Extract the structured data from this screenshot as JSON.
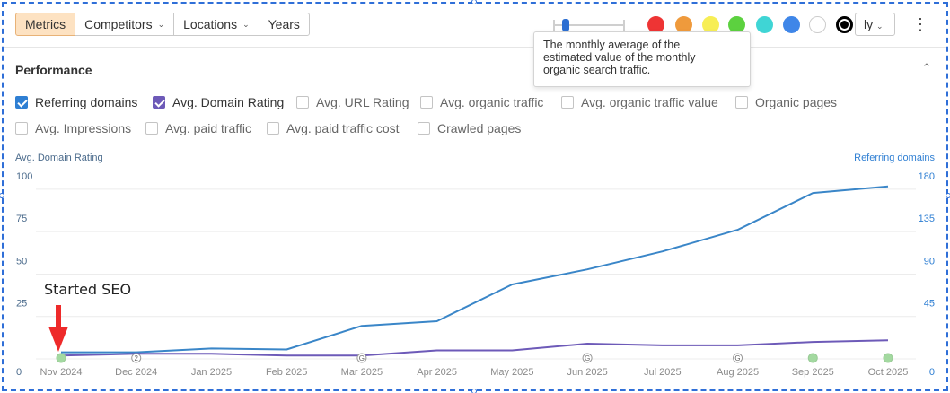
{
  "toolbar": {
    "tabs": [
      {
        "label": "Metrics",
        "active": true
      },
      {
        "label": "Competitors",
        "dropdown": true
      },
      {
        "label": "Locations",
        "dropdown": true
      },
      {
        "label": "Years"
      }
    ]
  },
  "palette": [
    "#ee3434",
    "#ef9a3c",
    "#f7ee55",
    "#5cd13f",
    "#3fd5d5",
    "#3f86e8",
    "#ffffff",
    "#000000"
  ],
  "period": {
    "label": "ly"
  },
  "tooltip": {
    "lines": [
      "The monthly average of the",
      "estimated value of the monthly",
      "organic search traffic."
    ]
  },
  "section": {
    "title": "Performance"
  },
  "metrics": {
    "row1": [
      {
        "label": "Referring domains",
        "checked": true,
        "color": "#2f7fd3"
      },
      {
        "label": "Avg. Domain Rating",
        "checked": true,
        "color": "#6d5ab8"
      },
      {
        "label": "Avg. URL Rating",
        "checked": false
      },
      {
        "label": "Avg. organic traffic",
        "checked": false
      },
      {
        "label": "Avg. organic traffic value",
        "checked": false
      },
      {
        "label": "Organic pages",
        "checked": false
      }
    ],
    "row2": [
      {
        "label": "Avg. Impressions",
        "checked": false
      },
      {
        "label": "Avg. paid traffic",
        "checked": false
      },
      {
        "label": "Avg. paid traffic cost",
        "checked": false
      },
      {
        "label": "Crawled pages",
        "checked": false
      }
    ]
  },
  "chart_data": {
    "type": "line",
    "ylabel_left": "Avg. Domain Rating",
    "ylabel_right": "Referring domains",
    "x": [
      "Nov 2024",
      "Dec 2024",
      "Jan 2025",
      "Feb 2025",
      "Mar 2025",
      "Apr 2025",
      "May 2025",
      "Jun 2025",
      "Jul 2025",
      "Aug 2025",
      "Sep 2025",
      "Oct 2025"
    ],
    "yticks_left": [
      "0",
      "25",
      "50",
      "75",
      "100"
    ],
    "yticks_right": [
      "0",
      "45",
      "90",
      "135",
      "180"
    ],
    "ylim_left": [
      0,
      110
    ],
    "ylim_right": [
      0,
      198
    ],
    "grid": true,
    "series": [
      {
        "name": "Referring domains",
        "axis": "right",
        "color": "#3a86c8",
        "values": [
          7,
          7,
          11,
          10,
          35,
          40,
          79,
          95,
          114,
          137,
          176,
          183
        ]
      },
      {
        "name": "Avg. Domain Rating",
        "axis": "left",
        "color": "#6d5ab8",
        "values": [
          2,
          3,
          3,
          2,
          2,
          5,
          5,
          9,
          8,
          8,
          10,
          11
        ]
      }
    ],
    "event_markers": [
      {
        "x": "Nov 2024",
        "letter": "",
        "color": "#a3d9a0"
      },
      {
        "x": "Dec 2024",
        "letter": "2",
        "color": "#ffffff"
      },
      {
        "x": "Mar 2025",
        "letter": "G",
        "color": "#ffffff"
      },
      {
        "x": "Jun 2025",
        "letter": "G",
        "color": "#ffffff"
      },
      {
        "x": "Aug 2025",
        "letter": "G",
        "color": "#ffffff"
      },
      {
        "x": "Sep 2025",
        "letter": "",
        "color": "#a3d9a0"
      },
      {
        "x": "Oct 2025",
        "letter": "",
        "color": "#a3d9a0"
      }
    ],
    "annotation": {
      "text": "Started SEO",
      "x": "Nov 2024",
      "color": "#ee2a2a"
    }
  }
}
